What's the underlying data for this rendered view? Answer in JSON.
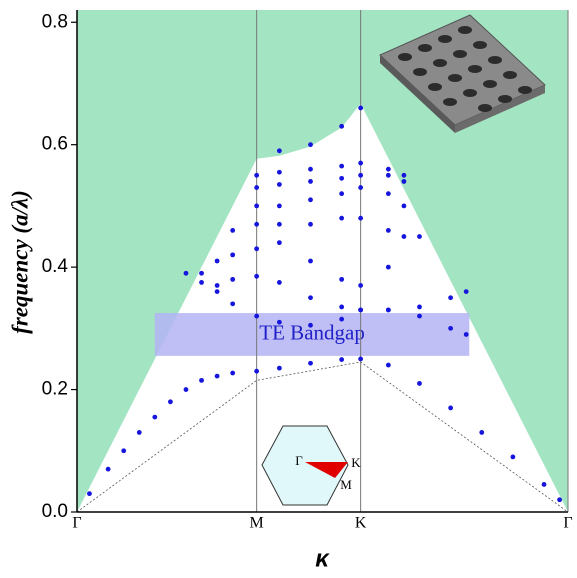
{
  "chart_data": {
    "type": "band-diagram",
    "x_label": "κ",
    "y_label": "frequency (a/λ)",
    "xlim": [
      0,
      1.577
    ],
    "ylim": [
      0,
      0.82
    ],
    "xticks": [
      {
        "value": 0,
        "label": "Γ"
      },
      {
        "value": 0.577,
        "label": "M"
      },
      {
        "value": 0.911,
        "label": "K"
      },
      {
        "value": 1.577,
        "label": "Γ"
      }
    ],
    "yticks": [
      {
        "value": 0,
        "label": "0.0"
      },
      0.2,
      0.4,
      0.6,
      0.8
    ],
    "light_cone": {
      "color": "#a3e4c3",
      "x": [
        0,
        0.577,
        0.65,
        0.75,
        0.85,
        0.911,
        1.577
      ],
      "values": [
        0,
        0.577,
        0.582,
        0.597,
        0.628,
        0.667,
        0
      ]
    },
    "reference_line": {
      "x": [
        0,
        0.577,
        0.911,
        1.577
      ],
      "values": [
        0,
        0.215,
        0.245,
        0
      ]
    },
    "bandgap": {
      "label": "TE Bandgap",
      "color": "#b4b4f5",
      "range": [
        0.255,
        0.325
      ],
      "x_range": [
        0.25,
        1.26
      ]
    },
    "band_color": "#1515dd",
    "bands": [
      {
        "x": [
          0.04,
          0.1,
          0.15,
          0.2,
          0.25,
          0.3,
          0.35,
          0.4,
          0.45,
          0.5,
          0.577,
          0.65,
          0.75,
          0.85,
          0.911,
          1.0,
          1.1,
          1.2,
          1.3,
          1.4,
          1.5,
          1.55
        ],
        "values": [
          0.03,
          0.07,
          0.1,
          0.13,
          0.155,
          0.18,
          0.2,
          0.215,
          0.222,
          0.227,
          0.23,
          0.235,
          0.243,
          0.249,
          0.25,
          0.24,
          0.21,
          0.17,
          0.13,
          0.09,
          0.045,
          0.02
        ]
      },
      {
        "x": [
          0.4,
          0.45,
          0.5,
          0.577,
          0.65,
          0.75,
          0.85,
          0.911,
          1.0,
          1.1,
          1.2,
          1.25
        ],
        "values": [
          0.39,
          0.36,
          0.34,
          0.32,
          0.31,
          0.305,
          0.315,
          0.33,
          0.33,
          0.335,
          0.35,
          0.36
        ]
      },
      {
        "x": [
          0.35,
          0.4,
          0.45,
          0.5,
          0.577,
          0.65,
          0.75,
          0.85,
          0.911,
          1.0,
          1.1,
          1.2,
          1.25
        ],
        "values": [
          0.39,
          0.375,
          0.37,
          0.38,
          0.385,
          0.375,
          0.35,
          0.335,
          0.33,
          0.33,
          0.32,
          0.3,
          0.29
        ]
      },
      {
        "x": [
          0.45,
          0.5,
          0.577,
          0.65,
          0.75,
          0.85,
          0.911,
          1.0,
          1.1
        ],
        "values": [
          0.41,
          0.42,
          0.43,
          0.44,
          0.41,
          0.38,
          0.37,
          0.4,
          0.45
        ]
      },
      {
        "x": [
          0.5,
          0.577,
          0.65,
          0.75,
          0.85,
          0.911,
          1.0,
          1.05
        ],
        "values": [
          0.46,
          0.47,
          0.47,
          0.47,
          0.48,
          0.48,
          0.46,
          0.45
        ]
      },
      {
        "x": [
          0.577,
          0.65,
          0.75,
          0.85,
          0.911,
          1.0,
          1.05
        ],
        "values": [
          0.5,
          0.5,
          0.51,
          0.52,
          0.53,
          0.52,
          0.5
        ]
      },
      {
        "x": [
          0.577,
          0.65,
          0.75,
          0.85,
          0.911,
          1.0,
          1.05
        ],
        "values": [
          0.53,
          0.535,
          0.54,
          0.545,
          0.55,
          0.55,
          0.54
        ]
      },
      {
        "x": [
          0.577,
          0.65,
          0.75,
          0.85,
          0.911,
          1.0,
          1.05
        ],
        "values": [
          0.55,
          0.555,
          0.56,
          0.565,
          0.57,
          0.56,
          0.55
        ]
      },
      {
        "x": [
          0.65,
          0.75,
          0.85,
          0.911
        ],
        "values": [
          0.59,
          0.6,
          0.63,
          0.66
        ]
      }
    ],
    "inset_labels": [
      "Γ",
      "K",
      "M"
    ]
  }
}
